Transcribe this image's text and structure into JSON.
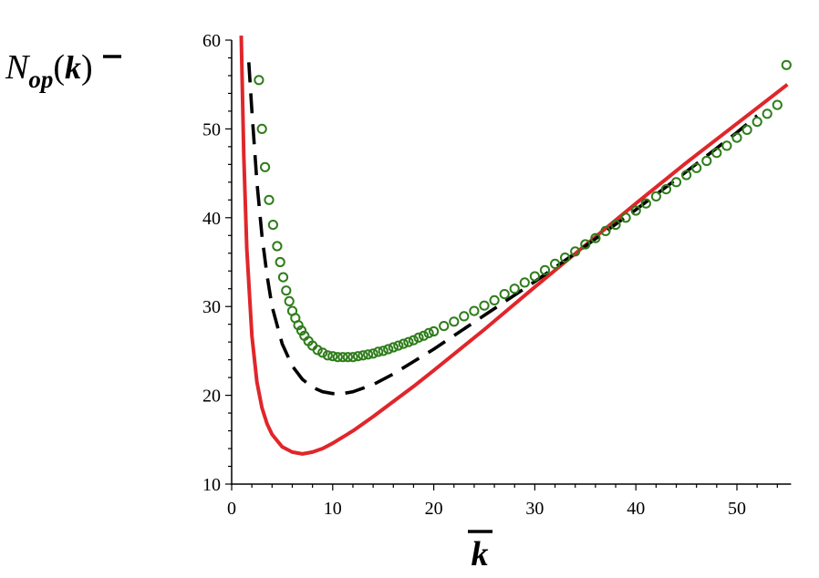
{
  "chart_data": {
    "type": "line",
    "title": "",
    "xlabel": "k",
    "ylabel": {
      "main": "N",
      "sub": "op",
      "open": "(",
      "arg": "k",
      "close": ")"
    },
    "xlim": [
      0,
      55
    ],
    "ylim": [
      10,
      60
    ],
    "x_ticks": [
      "0",
      "10",
      "20",
      "30",
      "40",
      "50"
    ],
    "y_ticks": [
      "10",
      "20",
      "30",
      "40",
      "50",
      "60"
    ],
    "grid": false,
    "legend": "none",
    "series": [
      {
        "style": "solid",
        "color": "#e0262a",
        "x": [
          0.95,
          1.0,
          1.2,
          1.5,
          2.0,
          2.5,
          3.0,
          3.5,
          4.0,
          5.0,
          6.0,
          7.0,
          8.0,
          9.0,
          10.0,
          12.0,
          14.0,
          16.0,
          18.0,
          20.0,
          25.0,
          30.0,
          35.0,
          40.0,
          45.0,
          50.0,
          55.0
        ],
        "y": [
          60.5,
          57.5,
          47.0,
          36.5,
          26.7,
          21.5,
          18.6,
          16.8,
          15.6,
          14.2,
          13.6,
          13.4,
          13.6,
          14.0,
          14.6,
          16.0,
          17.6,
          19.3,
          21.0,
          22.8,
          27.4,
          32.2,
          36.9,
          41.6,
          46.2,
          50.6,
          55.0
        ]
      },
      {
        "style": "dashed",
        "color": "#000000",
        "x": [
          1.7,
          2.0,
          2.5,
          3.0,
          3.5,
          4.0,
          5.0,
          6.0,
          7.0,
          8.0,
          9.0,
          10.0,
          11.0,
          12.0,
          14.0,
          16.0,
          18.0,
          20.0,
          25.0,
          30.0,
          35.0,
          40.0,
          45.0,
          50.0,
          52.0
        ],
        "y": [
          57.5,
          52.0,
          44.0,
          38.0,
          33.5,
          30.0,
          25.8,
          23.3,
          21.8,
          20.9,
          20.4,
          20.2,
          20.2,
          20.4,
          21.2,
          22.4,
          23.8,
          25.2,
          29.0,
          32.8,
          36.8,
          40.9,
          45.2,
          49.6,
          51.5
        ]
      },
      {
        "style": "circles",
        "color": "#2e7d1a",
        "x": [
          2.7,
          3.0,
          3.3,
          3.7,
          4.1,
          4.5,
          4.8,
          5.1,
          5.4,
          5.7,
          6.0,
          6.3,
          6.6,
          6.9,
          7.2,
          7.6,
          8.0,
          8.5,
          9.0,
          9.5,
          10.0,
          10.5,
          11.0,
          11.5,
          12.0,
          12.5,
          13.0,
          13.5,
          14.0,
          14.5,
          15.0,
          15.5,
          16.0,
          16.5,
          17.0,
          17.5,
          18.0,
          18.5,
          19.0,
          19.5,
          20.0,
          21.0,
          22.0,
          23.0,
          24.0,
          25.0,
          26.0,
          27.0,
          28.0,
          29.0,
          30.0,
          31.0,
          32.0,
          33.0,
          34.0,
          35.0,
          36.0,
          37.0,
          38.0,
          39.0,
          40.0,
          41.0,
          42.0,
          43.0,
          44.0,
          45.0,
          46.0,
          47.0,
          48.0,
          49.0,
          50.0,
          51.0,
          52.0,
          53.0,
          54.0,
          54.9
        ],
        "y": [
          55.5,
          50.0,
          45.7,
          42.0,
          39.2,
          36.8,
          35.0,
          33.3,
          31.8,
          30.6,
          29.5,
          28.7,
          27.9,
          27.3,
          26.7,
          26.1,
          25.6,
          25.1,
          24.8,
          24.5,
          24.4,
          24.3,
          24.3,
          24.3,
          24.3,
          24.4,
          24.5,
          24.6,
          24.7,
          24.9,
          25.0,
          25.2,
          25.4,
          25.6,
          25.8,
          26.0,
          26.2,
          26.5,
          26.7,
          27.0,
          27.2,
          27.8,
          28.3,
          28.9,
          29.5,
          30.1,
          30.7,
          31.4,
          32.0,
          32.7,
          33.4,
          34.1,
          34.8,
          35.5,
          36.2,
          37.0,
          37.7,
          38.5,
          39.2,
          40.0,
          40.8,
          41.6,
          42.4,
          43.2,
          44.0,
          44.8,
          45.6,
          46.4,
          47.3,
          48.1,
          49.0,
          49.9,
          50.8,
          51.7,
          52.7,
          57.2
        ]
      }
    ]
  }
}
